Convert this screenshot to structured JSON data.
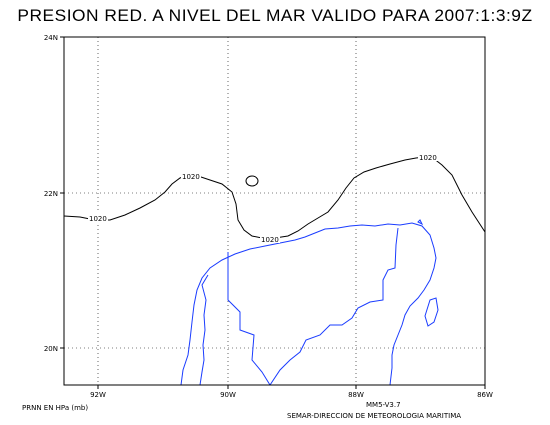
{
  "title": "PRESION RED. A NIVEL DEL MAR VALIDO PARA 2007:1:3:9Z",
  "axes": {
    "x_ticks": [
      "92W",
      "90W",
      "88W",
      "86W"
    ],
    "y_ticks": [
      "24N",
      "22N",
      "20N"
    ]
  },
  "contour_labels": [
    "1020",
    "1020",
    "1020",
    "1020"
  ],
  "footer": {
    "units": "PRNN EN HPa (mb)",
    "model": "MM5-V3.7",
    "credit": "SEMAR-DIRECCION DE METEOROLOGIA MARITIMA"
  },
  "colors": {
    "coastline": "#1a3cff",
    "contour": "#000000",
    "grid": "#000000"
  }
}
